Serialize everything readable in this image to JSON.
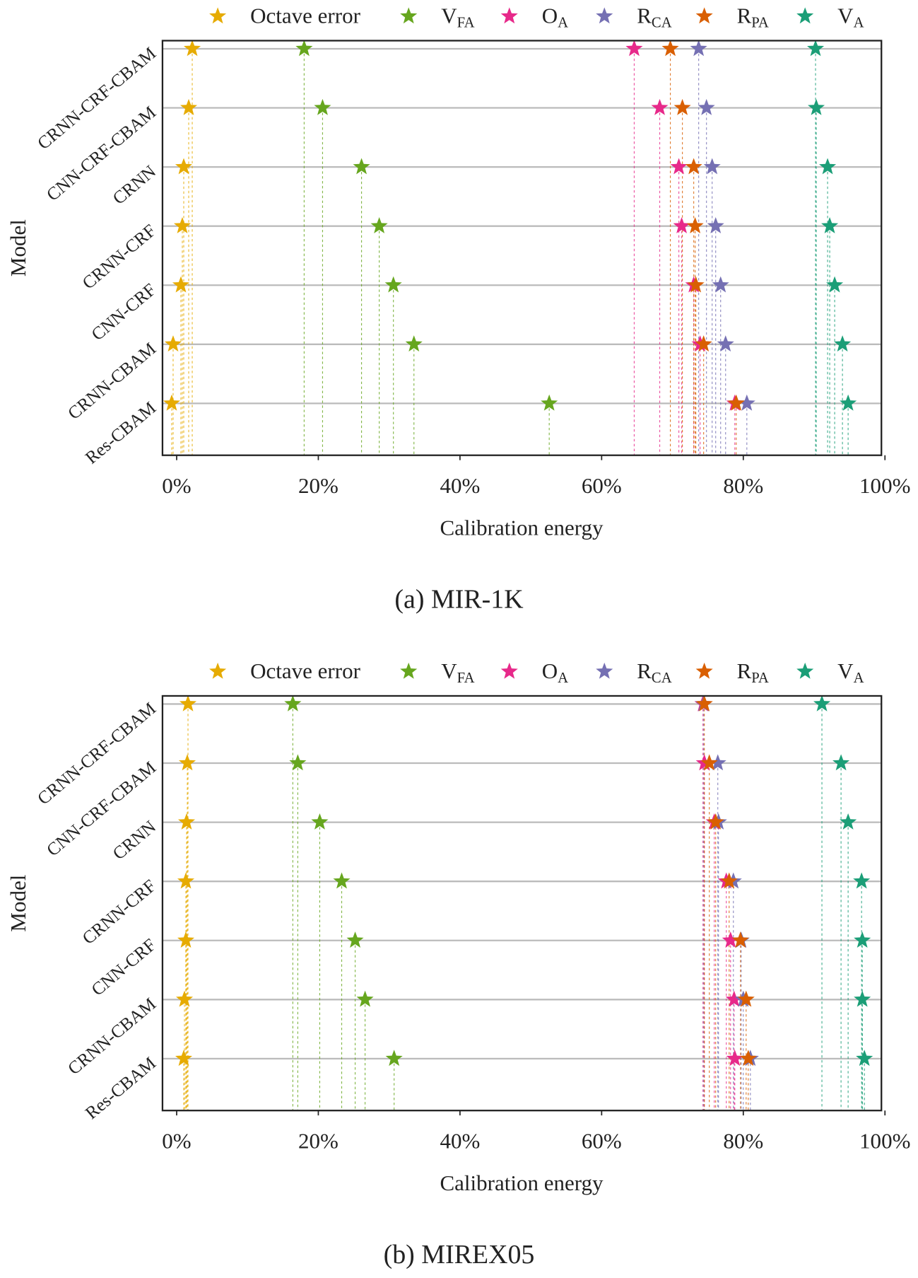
{
  "chart_data": [
    {
      "type": "dot",
      "title": "(a) MIR-1K",
      "x_label": "Calibration energy",
      "y_label": "Model",
      "legend": "top",
      "categories": [
        "CRNN-CRF-CBAM",
        "CNN-CRF-CBAM",
        "CRNN",
        "CRNN-CRF",
        "CNN-CRF",
        "CRNN-CBAM",
        "Res-CBAM"
      ],
      "xlim": [
        -2,
        99.5
      ],
      "xticks": [
        {
          "value": 0,
          "label": "0%"
        },
        {
          "value": 20,
          "label": "20%"
        },
        {
          "value": 40,
          "label": "40%"
        },
        {
          "value": 60,
          "label": "60%"
        },
        {
          "value": 80,
          "label": "80%"
        },
        {
          "value": 100,
          "label": "100%"
        }
      ],
      "series": [
        {
          "name": "Octave error",
          "color": "#e6ab02",
          "values": [
            2.2,
            1.7,
            1.0,
            0.8,
            0.6,
            -0.5,
            -0.7
          ]
        },
        {
          "name": "V",
          "subscript": "FA",
          "color": "#66a61e",
          "values": [
            18.0,
            20.6,
            26.1,
            28.6,
            30.6,
            33.5,
            52.6
          ]
        },
        {
          "name": "O",
          "subscript": "A",
          "color": "#e7298a",
          "values": [
            64.6,
            68.2,
            70.9,
            71.3,
            73.0,
            73.9,
            78.8
          ]
        },
        {
          "name": "R",
          "subscript": "CA",
          "color": "#7570b3",
          "values": [
            73.7,
            74.8,
            75.6,
            76.1,
            76.8,
            77.5,
            80.5
          ]
        },
        {
          "name": "R",
          "subscript": "PA",
          "color": "#d95f02",
          "values": [
            69.7,
            71.4,
            73.0,
            73.2,
            73.3,
            74.4,
            79.0
          ]
        },
        {
          "name": "V",
          "subscript": "A",
          "color": "#1b9e77",
          "values": [
            90.2,
            90.3,
            91.9,
            92.2,
            92.9,
            94.0,
            94.8
          ]
        }
      ]
    },
    {
      "type": "dot",
      "title": "(b) MIREX05",
      "x_label": "Calibration energy",
      "y_label": "Model",
      "legend": "top",
      "categories": [
        "CRNN-CRF-CBAM",
        "CNN-CRF-CBAM",
        "CRNN",
        "CRNN-CRF",
        "CNN-CRF",
        "CRNN-CBAM",
        "Res-CBAM"
      ],
      "xlim": [
        -2,
        99.5
      ],
      "xticks": [
        {
          "value": 0,
          "label": "0%"
        },
        {
          "value": 20,
          "label": "20%"
        },
        {
          "value": 40,
          "label": "40%"
        },
        {
          "value": 60,
          "label": "60%"
        },
        {
          "value": 80,
          "label": "80%"
        },
        {
          "value": 100,
          "label": "100%"
        }
      ],
      "series": [
        {
          "name": "Octave error",
          "color": "#e6ab02",
          "values": [
            1.6,
            1.5,
            1.4,
            1.3,
            1.3,
            1.1,
            1.0
          ]
        },
        {
          "name": "V",
          "subscript": "FA",
          "color": "#66a61e",
          "values": [
            16.4,
            17.1,
            20.2,
            23.3,
            25.2,
            26.6,
            30.7
          ]
        },
        {
          "name": "O",
          "subscript": "A",
          "color": "#e7298a",
          "values": [
            74.3,
            74.5,
            75.9,
            77.6,
            78.2,
            78.7,
            78.8
          ]
        },
        {
          "name": "R",
          "subscript": "CA",
          "color": "#7570b3",
          "values": [
            74.4,
            76.4,
            76.5,
            78.6,
            79.7,
            80.0,
            81.0
          ]
        },
        {
          "name": "R",
          "subscript": "PA",
          "color": "#d95f02",
          "values": [
            74.5,
            75.2,
            76.1,
            78.0,
            79.6,
            80.4,
            80.7
          ]
        },
        {
          "name": "V",
          "subscript": "A",
          "color": "#1b9e77",
          "values": [
            91.1,
            93.8,
            94.8,
            96.7,
            96.8,
            96.8,
            97.1
          ]
        }
      ]
    }
  ]
}
